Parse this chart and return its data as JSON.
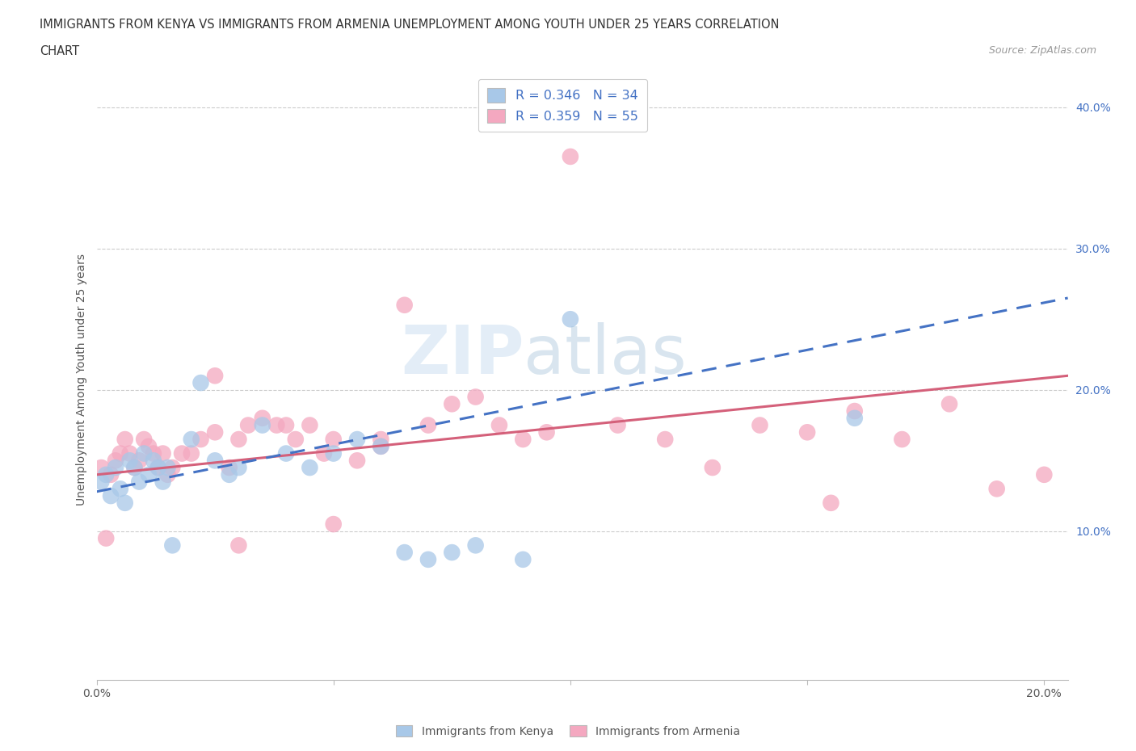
{
  "title_line1": "IMMIGRANTS FROM KENYA VS IMMIGRANTS FROM ARMENIA UNEMPLOYMENT AMONG YOUTH UNDER 25 YEARS CORRELATION",
  "title_line2": "CHART",
  "source": "Source: ZipAtlas.com",
  "ylabel": "Unemployment Among Youth under 25 years",
  "kenya_R": 0.346,
  "kenya_N": 34,
  "armenia_R": 0.359,
  "armenia_N": 55,
  "kenya_color": "#A8C8E8",
  "armenia_color": "#F4A8C0",
  "kenya_line_color": "#4472C4",
  "armenia_line_color": "#D4607A",
  "xlim": [
    0.0,
    0.205
  ],
  "ylim": [
    -0.005,
    0.42
  ],
  "kenya_scatter_x": [
    0.001,
    0.002,
    0.003,
    0.004,
    0.005,
    0.006,
    0.007,
    0.008,
    0.009,
    0.01,
    0.011,
    0.012,
    0.013,
    0.014,
    0.015,
    0.016,
    0.02,
    0.022,
    0.025,
    0.028,
    0.03,
    0.035,
    0.04,
    0.045,
    0.05,
    0.055,
    0.06,
    0.065,
    0.07,
    0.075,
    0.08,
    0.09,
    0.1,
    0.16
  ],
  "kenya_scatter_y": [
    0.135,
    0.14,
    0.125,
    0.145,
    0.13,
    0.12,
    0.15,
    0.145,
    0.135,
    0.155,
    0.14,
    0.15,
    0.145,
    0.135,
    0.145,
    0.09,
    0.165,
    0.205,
    0.15,
    0.14,
    0.145,
    0.175,
    0.155,
    0.145,
    0.155,
    0.165,
    0.16,
    0.085,
    0.08,
    0.085,
    0.09,
    0.08,
    0.25,
    0.18
  ],
  "armenia_scatter_x": [
    0.001,
    0.002,
    0.003,
    0.004,
    0.005,
    0.006,
    0.007,
    0.008,
    0.009,
    0.01,
    0.011,
    0.012,
    0.013,
    0.014,
    0.015,
    0.016,
    0.018,
    0.02,
    0.022,
    0.025,
    0.028,
    0.03,
    0.032,
    0.035,
    0.038,
    0.04,
    0.042,
    0.045,
    0.048,
    0.05,
    0.055,
    0.06,
    0.065,
    0.07,
    0.075,
    0.08,
    0.085,
    0.09,
    0.095,
    0.1,
    0.11,
    0.12,
    0.13,
    0.14,
    0.15,
    0.16,
    0.17,
    0.18,
    0.19,
    0.2,
    0.025,
    0.03,
    0.05,
    0.06,
    0.155
  ],
  "armenia_scatter_y": [
    0.145,
    0.095,
    0.14,
    0.15,
    0.155,
    0.165,
    0.155,
    0.145,
    0.15,
    0.165,
    0.16,
    0.155,
    0.145,
    0.155,
    0.14,
    0.145,
    0.155,
    0.155,
    0.165,
    0.17,
    0.145,
    0.165,
    0.175,
    0.18,
    0.175,
    0.175,
    0.165,
    0.175,
    0.155,
    0.165,
    0.15,
    0.165,
    0.26,
    0.175,
    0.19,
    0.195,
    0.175,
    0.165,
    0.17,
    0.365,
    0.175,
    0.165,
    0.145,
    0.175,
    0.17,
    0.185,
    0.165,
    0.19,
    0.13,
    0.14,
    0.21,
    0.09,
    0.105,
    0.16,
    0.12
  ],
  "kenya_line_x0": 0.0,
  "kenya_line_y0": 0.128,
  "kenya_line_x1": 0.205,
  "kenya_line_y1": 0.265,
  "armenia_line_x0": 0.0,
  "armenia_line_y0": 0.14,
  "armenia_line_x1": 0.205,
  "armenia_line_y1": 0.21
}
